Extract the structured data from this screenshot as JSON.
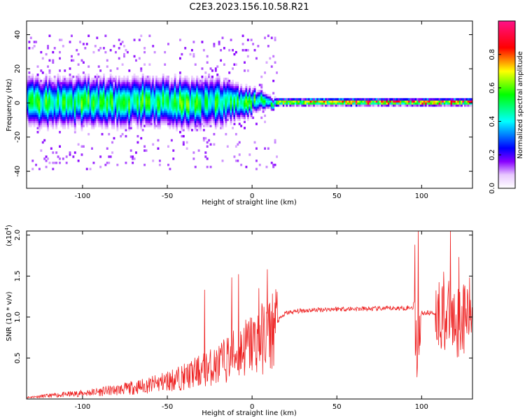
{
  "figure": {
    "title": "C2E3.2023.156.10.58.R21",
    "colors": {
      "snr_line": "#ee2222",
      "axes": "#000000",
      "background": "#ffffff"
    }
  },
  "chart_data": [
    {
      "type": "heatmap",
      "xlabel": "Height of straight line (km)",
      "ylabel": "Frequency (Hz)",
      "xlim": [
        -133,
        130
      ],
      "ylim": [
        -50,
        48
      ],
      "xticks": [
        -100,
        -50,
        0,
        50,
        100
      ],
      "yticks": [
        -40,
        -20,
        0,
        20,
        40
      ],
      "grid": false,
      "colorbar": {
        "label": "Normalized spectral amplitude",
        "range": [
          0.0,
          1.0
        ],
        "ticks": [
          "0.0",
          "0.2",
          "0.4",
          "0.6",
          "0.8"
        ],
        "colormap": "rainbow (white-violet-blue-cyan-green-yellow-red-pink)"
      },
      "description_values": {
        "center_frequency_hz": 0,
        "scatter_spread_hz_below_minus20km": 10,
        "scatter_spread_hz_above_20km": 1.5,
        "peak_amplitude_region_km": [
          15,
          125
        ]
      }
    },
    {
      "type": "line",
      "xlabel": "Height of straight line (km)",
      "ylabel": "SNR (10 * v/v)",
      "yscale_label": "(x10",
      "yscale_exp": "4",
      "yscale_close": ")",
      "xlim": [
        -133,
        130
      ],
      "ylim": [
        0,
        2.05
      ],
      "xticks": [
        -100,
        -50,
        0,
        50,
        100
      ],
      "yticks": [
        "0.5",
        "1.0",
        "1.5",
        "2.0"
      ],
      "grid": false,
      "series": [
        {
          "color": "#ee2222",
          "trend_points": {
            "x": [
              -133,
              -120,
              -100,
              -80,
              -60,
              -40,
              -20,
              -10,
              0,
              10,
              15,
              20,
              30,
              50,
              70,
              90,
              95,
              97,
              100,
              110,
              120,
              130
            ],
            "y": [
              0.02,
              0.04,
              0.07,
              0.11,
              0.17,
              0.27,
              0.42,
              0.55,
              0.68,
              0.78,
              0.95,
              1.05,
              1.08,
              1.1,
              1.1,
              1.11,
              1.12,
              0.55,
              1.05,
              1.05,
              0.95,
              1.05
            ]
          },
          "spikes": {
            "x": [
              -28,
              -12,
              -8,
              4,
              9,
              96,
              98,
              113,
              117,
              122
            ],
            "y": [
              1.33,
              1.48,
              1.52,
              1.35,
              1.58,
              1.88,
              2.05,
              1.55,
              2.05,
              1.73
            ]
          }
        }
      ]
    }
  ]
}
